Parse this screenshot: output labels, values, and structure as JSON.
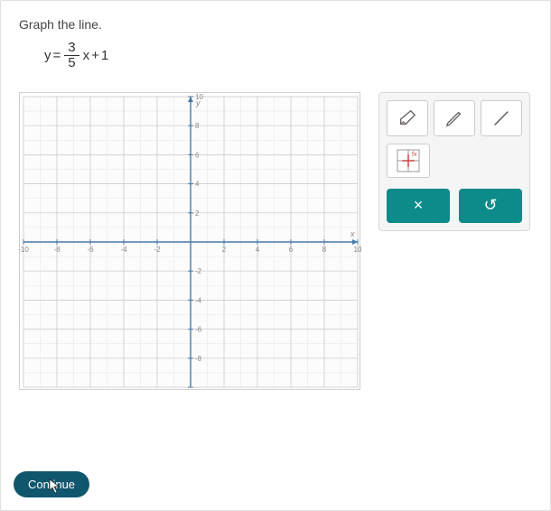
{
  "instruction": "Graph the line.",
  "equation": {
    "left": "y",
    "eq": "=",
    "num": "3",
    "den": "5",
    "var": "x",
    "op": "+",
    "const": "1"
  },
  "graph": {
    "type": "cartesian-grid",
    "xlim": [
      -10,
      10
    ],
    "ylim": [
      -10,
      10
    ],
    "xtick_step": 2,
    "ytick_step": 2,
    "x_labels": [
      "-10",
      "-8",
      "-6",
      "-4",
      "-2",
      "2",
      "4",
      "6",
      "8",
      "10"
    ],
    "y_labels": [
      "10",
      "8",
      "6",
      "4",
      "2",
      "-2",
      "-4",
      "-6",
      "-8"
    ],
    "axis_labels": {
      "x": "x",
      "y": "y"
    },
    "axis_color": "#4a78a8",
    "grid_major_color": "#c8c8c8",
    "grid_minor_color": "#e4e4e4",
    "background_color": "#fcfcfc",
    "label_fontsize": 8,
    "label_color": "#888888"
  },
  "tools": {
    "eraser": "eraser-icon",
    "pencil": "pencil-icon",
    "line": "line-icon",
    "point_plot": "point-plot-icon"
  },
  "actions": {
    "clear_label": "×",
    "undo_label": "↺",
    "button_bg": "#0d8a8a",
    "button_color": "#ffffff"
  },
  "continue": {
    "label": "Continue",
    "bg": "#10566d",
    "color": "#ffffff"
  }
}
